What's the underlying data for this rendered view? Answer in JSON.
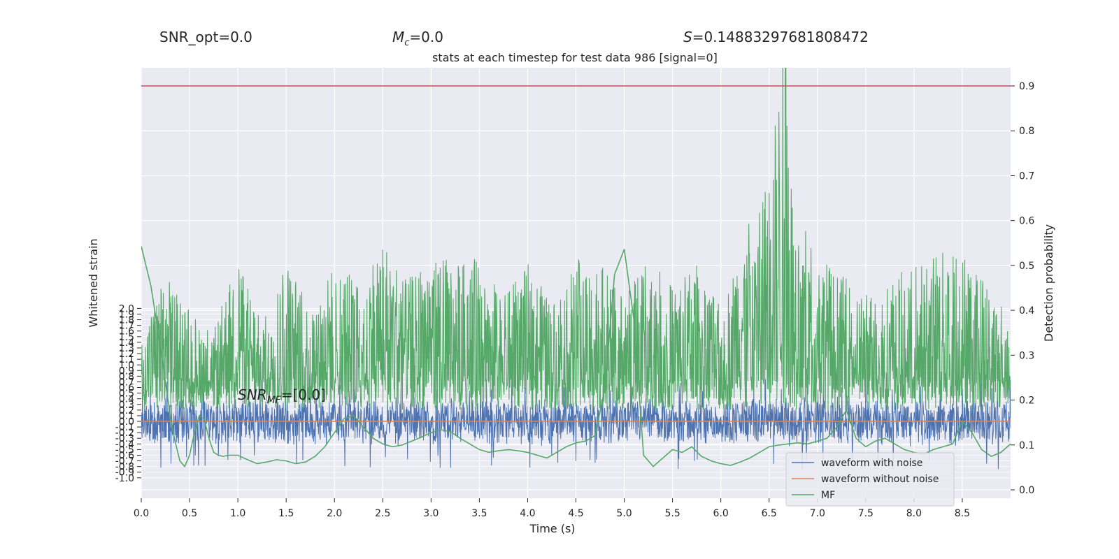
{
  "header": {
    "snr_opt": "SNR_opt=0.0",
    "mc_symbol": "M",
    "mc_subscript": "c",
    "mc_value": "=0.0",
    "s_symbol": "S",
    "s_value": "=0.14883297681808472"
  },
  "chart_data": {
    "type": "line",
    "title": "stats at each timestep for test data 986 [signal=0]",
    "xlabel": "Time (s)",
    "ylabel_left": "Whitened strain",
    "ylabel_right": "Detection probability",
    "xlim": [
      0.0,
      9.0
    ],
    "xticks": [
      "0.0",
      "0.5",
      "1.0",
      "1.5",
      "2.0",
      "2.5",
      "3.0",
      "3.5",
      "4.0",
      "4.5",
      "5.0",
      "5.5",
      "6.0",
      "6.5",
      "7.0",
      "7.5",
      "8.0",
      "8.5"
    ],
    "yticks_left": [
      "2.0",
      "1.9",
      "1.8",
      "1.7",
      "1.6",
      "1.5",
      "1.4",
      "1.3",
      "1.2",
      "1.1",
      "1.0",
      "0.9",
      "0.8",
      "0.7",
      "0.6",
      "0.5",
      "0.4",
      "0.3",
      "0.2",
      "0.1",
      "0.0",
      "-0.1",
      "-0.2",
      "-0.3",
      "-0.4",
      "-0.5",
      "-0.6",
      "-0.7",
      "-0.8",
      "-0.9",
      "-1.0"
    ],
    "yticks_right": [
      "0.9",
      "0.8",
      "0.7",
      "0.6",
      "0.5",
      "0.4",
      "0.3",
      "0.2",
      "0.1",
      "0.0"
    ],
    "threshold": 0.9,
    "annotation": {
      "symbol": "SNR",
      "subscript": "MF",
      "value": "=[0.0]"
    },
    "legend_position": "lower-right",
    "series": [
      {
        "name": "waveform with noise",
        "color": "#4c72b0",
        "axis": "left",
        "noise_band": [
          -0.45,
          0.45
        ],
        "spike_max": [
          -0.85,
          0.75
        ]
      },
      {
        "name": "waveform without noise",
        "color": "#dd8452",
        "axis": "left",
        "values_constant": 0.0
      },
      {
        "name": "MF",
        "color": "#55a868",
        "axis": "left",
        "x": [
          0.0,
          0.1,
          0.2,
          0.3,
          0.35,
          0.4,
          0.45,
          0.5,
          0.55,
          0.6,
          0.65,
          0.7,
          0.75,
          0.8,
          0.85,
          0.9,
          1.0,
          1.1,
          1.2,
          1.3,
          1.4,
          1.5,
          1.6,
          1.7,
          1.8,
          1.9,
          2.0,
          2.1,
          2.2,
          2.3,
          2.4,
          2.5,
          2.6,
          2.7,
          2.8,
          2.9,
          3.0,
          3.1,
          3.2,
          3.3,
          3.4,
          3.5,
          3.6,
          3.7,
          3.8,
          3.9,
          4.0,
          4.1,
          4.2,
          4.3,
          4.4,
          4.5,
          4.6,
          4.7,
          4.8,
          4.9,
          5.0,
          5.1,
          5.2,
          5.3,
          5.4,
          5.5,
          5.6,
          5.7,
          5.8,
          5.9,
          6.0,
          6.1,
          6.2,
          6.3,
          6.4,
          6.5,
          6.6,
          6.7,
          6.8,
          6.9,
          7.0,
          7.1,
          7.2,
          7.3,
          7.4,
          7.5,
          7.6,
          7.7,
          7.8,
          7.9,
          8.0,
          8.1,
          8.2,
          8.3,
          8.4,
          8.5,
          8.6,
          8.7,
          8.8,
          8.9,
          9.0
        ],
        "values": [
          3.1,
          2.4,
          1.3,
          0.1,
          -0.35,
          -0.7,
          -0.8,
          -0.6,
          -0.2,
          0.1,
          0.05,
          -0.3,
          -0.55,
          -0.6,
          -0.62,
          -0.6,
          -0.6,
          -0.68,
          -0.75,
          -0.72,
          -0.68,
          -0.7,
          -0.75,
          -0.72,
          -0.62,
          -0.45,
          -0.2,
          0.05,
          0.1,
          -0.1,
          -0.3,
          -0.4,
          -0.45,
          -0.42,
          -0.35,
          -0.28,
          -0.2,
          -0.15,
          -0.18,
          -0.3,
          -0.4,
          -0.5,
          -0.55,
          -0.52,
          -0.5,
          -0.52,
          -0.55,
          -0.6,
          -0.65,
          -0.55,
          -0.45,
          -0.38,
          -0.35,
          -0.25,
          0.6,
          2.6,
          3.05,
          1.8,
          -0.6,
          -0.8,
          -0.65,
          -0.5,
          -0.55,
          -0.45,
          -0.62,
          -0.7,
          -0.75,
          -0.78,
          -0.72,
          -0.65,
          -0.55,
          -0.45,
          -0.42,
          -0.4,
          -0.38,
          -0.4,
          -0.35,
          -0.3,
          -0.1,
          0.2,
          -0.3,
          -0.45,
          -0.35,
          -0.3,
          -0.4,
          -0.5,
          -0.55,
          -0.58,
          -0.5,
          -0.45,
          -0.4,
          0.0,
          -0.2,
          -0.5,
          -0.62,
          -0.55,
          -0.4
        ],
        "spiky_envelope": {
          "x": [
            0.0,
            0.25,
            0.5,
            0.75,
            1.0,
            1.25,
            1.5,
            1.75,
            2.0,
            2.25,
            2.5,
            2.75,
            3.0,
            3.25,
            3.5,
            3.75,
            4.0,
            4.25,
            4.5,
            4.75,
            5.0,
            5.25,
            5.5,
            5.75,
            6.0,
            6.25,
            6.5,
            6.67,
            6.75,
            7.0,
            7.25,
            7.5,
            7.75,
            8.0,
            8.25,
            8.5,
            8.75,
            9.0
          ],
          "peak": [
            1.5,
            2.6,
            2.0,
            1.6,
            3.0,
            1.7,
            2.9,
            2.0,
            2.8,
            2.5,
            3.3,
            2.5,
            3.0,
            2.8,
            2.9,
            2.2,
            2.8,
            2.1,
            2.9,
            2.8,
            2.2,
            2.9,
            2.4,
            2.8,
            2.0,
            3.4,
            4.4,
            7.0,
            3.8,
            3.0,
            2.6,
            2.3,
            2.5,
            2.8,
            3.0,
            3.1,
            2.5,
            1.8
          ]
        }
      }
    ]
  }
}
